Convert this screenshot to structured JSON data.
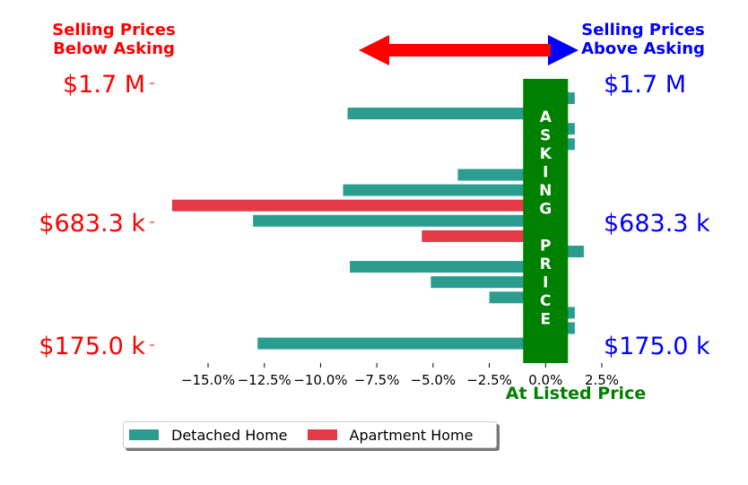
{
  "colors": {
    "detached": "#2a9d8f",
    "apartment": "#e63946",
    "asking": "#008000",
    "below": "#ff0000",
    "above": "#0000ff"
  },
  "headers": {
    "below": [
      "Selling Prices",
      "Below Asking"
    ],
    "above": [
      "Selling Prices",
      "Above Asking"
    ]
  },
  "legend": {
    "detached": "Detached Home",
    "apartment": "Apartment Home"
  },
  "chart_data": {
    "type": "bar",
    "orientation": "horizontal",
    "xlabel": "At Listed Price",
    "band_label": [
      "A",
      "S",
      "K",
      "I",
      "N",
      "G",
      "",
      "P",
      "R",
      "I",
      "C",
      "E"
    ],
    "xlim": [
      -0.167,
      0.035
    ],
    "xticks": [
      -0.15,
      -0.125,
      -0.1,
      -0.075,
      -0.05,
      -0.025,
      0,
      0.025
    ],
    "xtick_labels": [
      "−15.0%",
      "−12.5%",
      "−10.0%",
      "−7.5%",
      "−5.0%",
      "−2.5%",
      "0.0%",
      "2.5%"
    ],
    "ylabels_left": [
      "$1.7 M",
      "$683.3 k",
      "$175.0 k"
    ],
    "ylabels_right": [
      "$1.7 M",
      "$683.3 k",
      "$175.0 k"
    ],
    "series": [
      {
        "name": "Detached Home",
        "type": "detached",
        "values": [
          0.013,
          -0.088,
          0.013,
          0.013,
          null,
          -0.039,
          -0.09,
          null,
          -0.13,
          null,
          0.017,
          -0.087,
          -0.051,
          -0.025,
          0.013,
          0.013,
          -0.128
        ]
      },
      {
        "name": "Apartment Home",
        "type": "apartment",
        "values": [
          null,
          null,
          null,
          null,
          -0.009,
          null,
          null,
          -0.166,
          null,
          -0.055,
          null,
          null,
          null,
          null,
          null,
          null,
          null
        ]
      }
    ]
  }
}
